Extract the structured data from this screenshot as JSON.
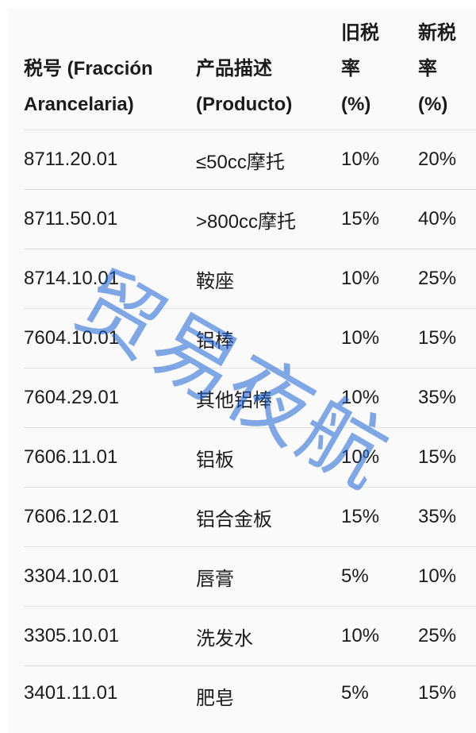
{
  "page": {
    "background": "#ffffff",
    "panel_background": "#fafafa",
    "divider_color": "#e3e3e3",
    "text_color": "#1b1b1d"
  },
  "watermark": {
    "text": "贸易夜航",
    "color": "#1a63d6",
    "opacity": 0.55,
    "rotation_deg": 30
  },
  "table": {
    "headers": [
      {
        "label": "税号 (Fracción Arancelaria)",
        "lines": [
          "税号 (Fracción",
          "Arancelaria)"
        ]
      },
      {
        "label": "产品描述 (Producto)",
        "lines": [
          "产品描述",
          "(Producto)"
        ]
      },
      {
        "label": "旧税率 (%)",
        "lines": [
          "旧税",
          "率",
          "(%)"
        ]
      },
      {
        "label": "新税率 (%)",
        "lines": [
          "新税",
          "率",
          "(%)"
        ]
      }
    ],
    "rows": [
      {
        "code": "8711.20.01",
        "product": "≤50cc摩托",
        "old_rate": "10%",
        "new_rate": "20%"
      },
      {
        "code": "8711.50.01",
        "product": ">800cc摩托",
        "old_rate": "15%",
        "new_rate": "40%"
      },
      {
        "code": "8714.10.01",
        "product": "鞍座",
        "old_rate": "10%",
        "new_rate": "25%"
      },
      {
        "code": "7604.10.01",
        "product": "铝棒",
        "old_rate": "10%",
        "new_rate": "15%"
      },
      {
        "code": "7604.29.01",
        "product": "其他铝棒",
        "old_rate": "10%",
        "new_rate": "35%"
      },
      {
        "code": "7606.11.01",
        "product": "铝板",
        "old_rate": "10%",
        "new_rate": "15%"
      },
      {
        "code": "7606.12.01",
        "product": "铝合金板",
        "old_rate": "15%",
        "new_rate": "35%"
      },
      {
        "code": "3304.10.01",
        "product": "唇膏",
        "old_rate": "5%",
        "new_rate": "10%"
      },
      {
        "code": "3305.10.01",
        "product": "洗发水",
        "old_rate": "10%",
        "new_rate": "25%"
      },
      {
        "code": "3401.11.01",
        "product": "肥皂",
        "old_rate": "5%",
        "new_rate": "15%"
      }
    ]
  },
  "chart_data": {
    "type": "table",
    "title": "",
    "columns": [
      "税号 (Fracción Arancelaria)",
      "产品描述 (Producto)",
      "旧税率 (%)",
      "新税率 (%)"
    ],
    "rows": [
      [
        "8711.20.01",
        "≤50cc摩托",
        "10%",
        "20%"
      ],
      [
        "8711.50.01",
        ">800cc摩托",
        "15%",
        "40%"
      ],
      [
        "8714.10.01",
        "鞍座",
        "10%",
        "25%"
      ],
      [
        "7604.10.01",
        "铝棒",
        "10%",
        "15%"
      ],
      [
        "7604.29.01",
        "其他铝棒",
        "10%",
        "35%"
      ],
      [
        "7606.11.01",
        "铝板",
        "10%",
        "15%"
      ],
      [
        "7606.12.01",
        "铝合金板",
        "15%",
        "35%"
      ],
      [
        "3304.10.01",
        "唇膏",
        "5%",
        "10%"
      ],
      [
        "3305.10.01",
        "洗发水",
        "10%",
        "25%"
      ],
      [
        "3401.11.01",
        "肥皂",
        "5%",
        "15%"
      ]
    ],
    "annotations": [
      "贸易夜航 (watermark)"
    ]
  }
}
